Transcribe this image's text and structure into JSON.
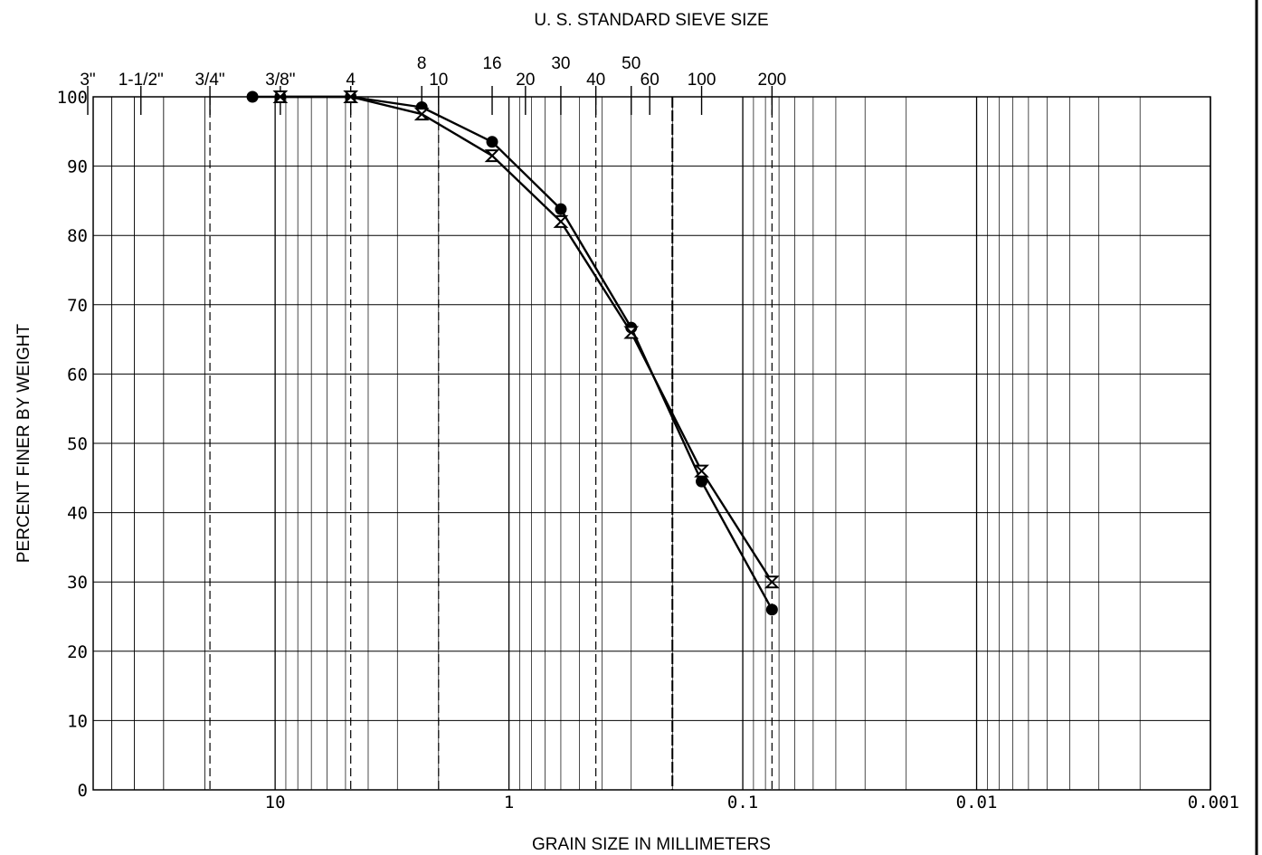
{
  "chart_data": {
    "type": "line",
    "title": "U. S. STANDARD SIEVE SIZE",
    "xlabel": "GRAIN SIZE IN MILLIMETERS",
    "ylabel": "PERCENT FINER BY WEIGHT",
    "x_scale": "log",
    "x_reversed": true,
    "xlim": [
      60,
      0.001
    ],
    "ylim": [
      0,
      100
    ],
    "x_ticks": [
      {
        "value": 10,
        "label": "10"
      },
      {
        "value": 1,
        "label": "1"
      },
      {
        "value": 0.1,
        "label": "0.1"
      },
      {
        "value": 0.01,
        "label": "0.01"
      },
      {
        "value": 0.001,
        "label": "0.001"
      }
    ],
    "y_ticks": [
      0,
      10,
      20,
      30,
      40,
      50,
      60,
      70,
      80,
      90,
      100
    ],
    "sieves": [
      {
        "label": "3\"",
        "size": 75.0,
        "row": "lower"
      },
      {
        "label": "1-1/2\"",
        "size": 37.5,
        "row": "lower"
      },
      {
        "label": "3/4\"",
        "size": 19.0,
        "row": "lower"
      },
      {
        "label": "3/8\"",
        "size": 9.5,
        "row": "lower"
      },
      {
        "label": "4",
        "size": 4.75,
        "row": "lower"
      },
      {
        "label": "8",
        "size": 2.36,
        "row": "upper"
      },
      {
        "label": "10",
        "size": 2.0,
        "row": "lower"
      },
      {
        "label": "16",
        "size": 1.18,
        "row": "upper"
      },
      {
        "label": "20",
        "size": 0.85,
        "row": "lower"
      },
      {
        "label": "30",
        "size": 0.6,
        "row": "upper"
      },
      {
        "label": "40",
        "size": 0.425,
        "row": "lower"
      },
      {
        "label": "50",
        "size": 0.3,
        "row": "upper"
      },
      {
        "label": "60",
        "size": 0.25,
        "row": "lower"
      },
      {
        "label": "100",
        "size": 0.15,
        "row": "lower"
      },
      {
        "label": "200",
        "size": 0.075,
        "row": "lower"
      }
    ],
    "dashed_boundaries": [
      19.0,
      4.75,
      2.0,
      0.425,
      0.075
    ],
    "series": [
      {
        "marker": "circle",
        "x": [
          12.5,
          9.5,
          4.75,
          2.36,
          1.18,
          0.6,
          0.3,
          0.15,
          0.075
        ],
        "y": [
          100,
          100,
          100,
          98.5,
          93.5,
          83.8,
          66.7,
          44.5,
          26.0
        ]
      },
      {
        "marker": "hourglass",
        "x": [
          9.5,
          4.75,
          2.36,
          1.18,
          0.6,
          0.3,
          0.15,
          0.075
        ],
        "y": [
          100,
          100,
          97.5,
          91.5,
          82.0,
          66.0,
          46.0,
          30.0
        ]
      }
    ]
  }
}
